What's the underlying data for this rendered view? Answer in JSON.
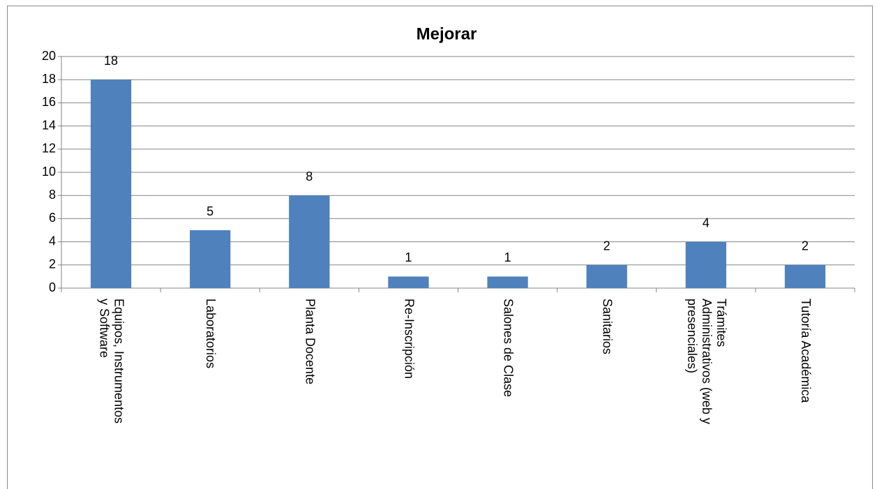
{
  "chart_data": {
    "type": "bar",
    "title": "Mejorar",
    "categories": [
      "Equipos, Instrumentos y Software",
      "Laboratorios",
      "Planta Docente",
      "Re-Inscripción",
      "Salones de Clase",
      "Sanitarios",
      "Trámites Administrativos (web y presenciales)",
      "Tutoría Académica"
    ],
    "values": [
      18,
      5,
      8,
      1,
      1,
      2,
      4,
      2
    ],
    "color": "#4f81bd",
    "ylim": [
      0,
      20
    ],
    "yticks": [
      0,
      2,
      4,
      6,
      8,
      10,
      12,
      14,
      16,
      18,
      20
    ],
    "grid": true
  }
}
